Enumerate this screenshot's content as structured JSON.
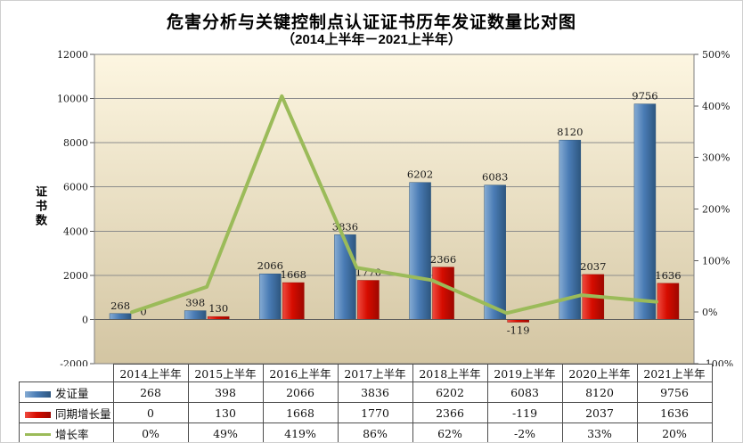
{
  "title": "危害分析与关键控制点认证证书历年发证数量比对图",
  "subtitle": "（2014上半年－2021上半年）",
  "chart_data": {
    "type": "combo-bar-line",
    "title": "危害分析与关键控制点认证证书历年发证数量比对图",
    "subtitle": "（2014上半年－2021上半年）",
    "grid": true,
    "legend_position": "table-left",
    "categories": [
      "2014上半年",
      "2015上半年",
      "2016上半年",
      "2017上半年",
      "2018上半年",
      "2019上半年",
      "2020上半年",
      "2021上半年"
    ],
    "series": [
      {
        "name": "发证量",
        "type": "bar",
        "axis": "left",
        "color": "#4A7CB5",
        "color_light": "#85ABD3",
        "color_dark": "#2D567F",
        "values": [
          268,
          398,
          2066,
          3836,
          6202,
          6083,
          8120,
          9756
        ],
        "display": [
          "268",
          "398",
          "2066",
          "3836",
          "6202",
          "6083",
          "8120",
          "9756"
        ]
      },
      {
        "name": "同期增长量",
        "type": "bar",
        "axis": "left",
        "color": "#D60C00",
        "color_light": "#EE4A3E",
        "color_dark": "#9E0700",
        "values": [
          0,
          130,
          1668,
          1770,
          2366,
          -119,
          2037,
          1636
        ],
        "display": [
          "0",
          "130",
          "1668",
          "1770",
          "2366",
          "-119",
          "2037",
          "1636"
        ]
      },
      {
        "name": "增长率",
        "type": "line",
        "axis": "right",
        "color": "#9BBB59",
        "values": [
          0,
          49,
          419,
          86,
          62,
          -2,
          33,
          20
        ],
        "display": [
          "0%",
          "49%",
          "419%",
          "86%",
          "62%",
          "-2%",
          "33%",
          "20%"
        ]
      }
    ],
    "left_axis": {
      "label": "证书数",
      "min": -2000,
      "max": 12000,
      "step": 2000,
      "ticks": [
        "12000",
        "10000",
        "8000",
        "6000",
        "4000",
        "2000",
        "0",
        "-2000"
      ]
    },
    "right_axis": {
      "min": -100,
      "max": 500,
      "step": 100,
      "ticks": [
        "500%",
        "400%",
        "300%",
        "200%",
        "100%",
        "0%",
        "-100%"
      ]
    },
    "colors": {
      "plot_bg_top": "#FDF6E1",
      "plot_bg_bottom": "#D3C5A2",
      "gridline": "#8C8C8C",
      "axis_line": "#5A5A5A",
      "plot_border": "#7F7F7F",
      "label_text": "#1A1A1A"
    }
  }
}
